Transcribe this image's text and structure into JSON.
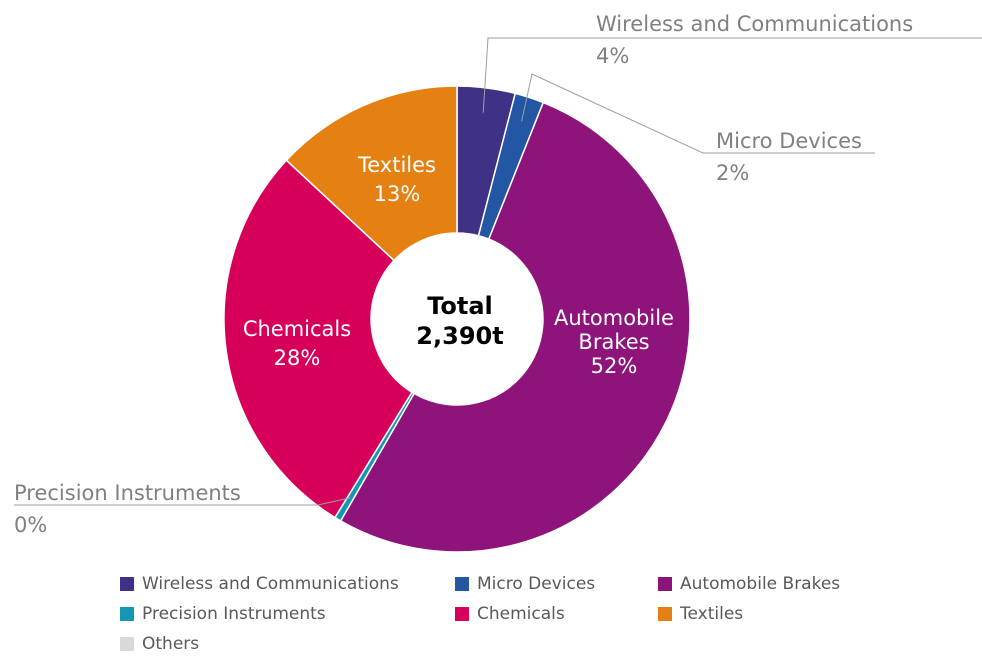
{
  "chart_data": {
    "type": "pie",
    "center_label": {
      "line1": "Total",
      "line2": "2,390t"
    },
    "slices": [
      {
        "name": "Wireless and Communications",
        "value": 4,
        "label": "4%",
        "color": "#3f3185"
      },
      {
        "name": "Micro Devices",
        "value": 2,
        "label": "2%",
        "color": "#2356a3"
      },
      {
        "name": "Automobile Brakes",
        "value": 52,
        "label": "52%",
        "color": "#8e137b"
      },
      {
        "name": "Precision Instruments",
        "value": 0.45,
        "label": "0%",
        "color": "#1496b5"
      },
      {
        "name": "Chemicals",
        "value": 28,
        "label": "28%",
        "color": "#d6005a"
      },
      {
        "name": "Textiles",
        "value": 13,
        "label": "13%",
        "color": "#e58112"
      },
      {
        "name": "Others",
        "value": 0,
        "label": "",
        "color": "#d9d9d9"
      }
    ],
    "legend": [
      "Wireless and Communications",
      "Micro Devices",
      "Automobile Brakes",
      "Precision Instruments",
      "Chemicals",
      "Textiles",
      "Others"
    ],
    "legend_placement": "bottom"
  }
}
